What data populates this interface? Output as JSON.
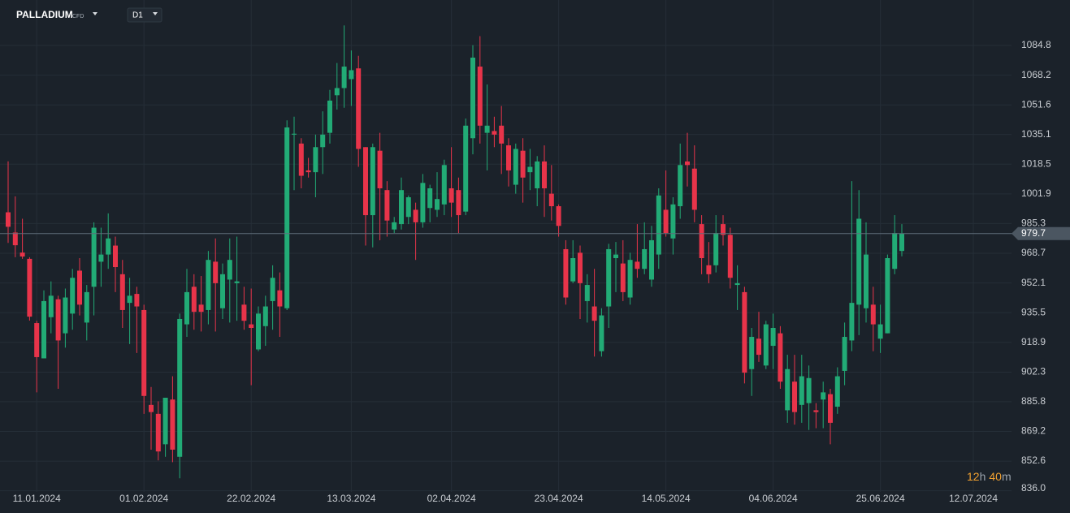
{
  "header": {
    "symbol": "PALLADIUM",
    "instrument_type": "CFD",
    "timeframe": "D1"
  },
  "chart_data": {
    "type": "candlestick",
    "x": [
      "05.01.2024",
      "08.01.2024",
      "09.01.2024",
      "10.01.2024",
      "11.01.2024",
      "12.01.2024",
      "15.01.2024",
      "16.01.2024",
      "17.01.2024",
      "18.01.2024",
      "19.01.2024",
      "22.01.2024",
      "23.01.2024",
      "24.01.2024",
      "25.01.2024",
      "26.01.2024",
      "29.01.2024",
      "30.01.2024",
      "31.01.2024",
      "01.02.2024",
      "02.02.2024",
      "05.02.2024",
      "06.02.2024",
      "07.02.2024",
      "08.02.2024",
      "09.02.2024",
      "12.02.2024",
      "13.02.2024",
      "14.02.2024",
      "15.02.2024",
      "16.02.2024",
      "19.02.2024",
      "20.02.2024",
      "21.02.2024",
      "22.02.2024",
      "23.02.2024",
      "26.02.2024",
      "27.02.2024",
      "28.02.2024",
      "29.02.2024",
      "01.03.2024",
      "04.03.2024",
      "05.03.2024",
      "06.03.2024",
      "07.03.2024",
      "08.03.2024",
      "11.03.2024",
      "12.03.2024",
      "13.03.2024",
      "14.03.2024",
      "15.03.2024",
      "18.03.2024",
      "19.03.2024",
      "20.03.2024",
      "21.03.2024",
      "22.03.2024",
      "25.03.2024",
      "26.03.2024",
      "27.03.2024",
      "28.03.2024",
      "29.03.2024",
      "01.04.2024",
      "02.04.2024",
      "03.04.2024",
      "04.04.2024",
      "05.04.2024",
      "08.04.2024",
      "09.04.2024",
      "10.04.2024",
      "11.04.2024",
      "12.04.2024",
      "15.04.2024",
      "16.04.2024",
      "17.04.2024",
      "18.04.2024",
      "19.04.2024",
      "22.04.2024",
      "23.04.2024",
      "24.04.2024",
      "25.04.2024",
      "26.04.2024",
      "29.04.2024",
      "30.04.2024",
      "01.05.2024",
      "02.05.2024",
      "03.05.2024",
      "06.05.2024",
      "07.05.2024",
      "08.05.2024",
      "09.05.2024",
      "10.05.2024",
      "13.05.2024",
      "14.05.2024",
      "15.05.2024",
      "16.05.2024",
      "17.05.2024",
      "20.05.2024",
      "21.05.2024",
      "22.05.2024",
      "23.05.2024",
      "24.05.2024",
      "27.05.2024",
      "28.05.2024",
      "29.05.2024",
      "30.05.2024",
      "31.05.2024",
      "03.06.2024",
      "04.06.2024",
      "05.06.2024",
      "06.06.2024",
      "07.06.2024",
      "10.06.2024",
      "11.06.2024",
      "12.06.2024",
      "13.06.2024",
      "14.06.2024",
      "17.06.2024",
      "18.06.2024",
      "19.06.2024",
      "20.06.2024",
      "21.06.2024",
      "24.06.2024",
      "25.06.2024",
      "26.06.2024",
      "27.06.2024",
      "28.06.2024"
    ],
    "open": [
      991.6,
      980.3,
      969.1,
      965.6,
      929.7,
      910,
      933,
      943,
      924,
      935,
      959,
      930,
      950,
      964,
      968,
      973,
      957,
      941,
      946,
      937,
      884,
      879,
      862,
      887,
      855,
      929,
      950,
      940,
      937,
      964,
      938,
      954,
      952,
      940,
      929,
      915,
      928,
      942,
      948,
      938,
      1035,
      1030,
      1015,
      1014,
      1028,
      1036,
      1057,
      1061,
      1066,
      1072,
      1028,
      990,
      1026,
      1004,
      982,
      985,
      989,
      993,
      986,
      994,
      993,
      996,
      1005,
      1004,
      992,
      1033,
      1073,
      1036,
      1037,
      1040,
      1029,
      1007,
      1026,
      1014,
      1005,
      1020,
      1002,
      995,
      971,
      953,
      969,
      942,
      939,
      914,
      939,
      966,
      963,
      944,
      964,
      960,
      954,
      968,
      993,
      977,
      995,
      1020,
      1016,
      985,
      962,
      962,
      985,
      979,
      951,
      947,
      904,
      921,
      906,
      917,
      924,
      881,
      897,
      884,
      885,
      881,
      887,
      890,
      883,
      903,
      920,
      940,
      938,
      940,
      921,
      924,
      960,
      970
    ],
    "high": [
      1020.1,
      1000.5,
      988,
      966.5,
      931,
      948,
      953,
      945,
      949,
      960,
      966,
      951,
      986,
      983,
      991,
      978,
      965,
      955,
      950,
      940,
      894,
      886,
      888,
      900,
      935,
      960,
      957,
      956,
      970,
      977,
      963,
      977,
      978,
      950,
      949,
      939,
      945,
      962,
      958,
      1043,
      1045,
      1033,
      1022,
      1035,
      1048,
      1060,
      1075,
      1096,
      1082,
      1079,
      1028,
      1030,
      1036,
      1009,
      989,
      1011,
      1001,
      997,
      1013,
      1007,
      1014,
      1021,
      1028,
      1011,
      1044,
      1085,
      1090,
      1063,
      1045,
      1051,
      1033,
      1030,
      1033,
      1027,
      1023,
      1029,
      1018,
      996,
      976,
      976,
      973,
      957,
      960,
      938,
      974,
      975,
      976,
      969,
      985,
      986,
      984,
      1005,
      1015,
      1000,
      1030,
      1036,
      1029,
      990,
      975,
      990,
      990,
      983,
      962,
      950,
      927,
      936,
      931,
      935,
      928,
      912,
      912,
      912,
      906,
      885,
      897,
      893,
      905,
      930,
      1009,
      1004,
      986,
      950,
      940,
      968,
      990,
      985
    ],
    "low": [
      974.5,
      966.5,
      965.6,
      931.1,
      891,
      910,
      924,
      893,
      916,
      926,
      934,
      920,
      934,
      950,
      960,
      947,
      927,
      918,
      913,
      879,
      859,
      853,
      855,
      852,
      843,
      922,
      926,
      925,
      929,
      925,
      932,
      930,
      931,
      926,
      895,
      914,
      917,
      926,
      922,
      937,
      1004,
      1005,
      1011,
      1000,
      1013,
      1030,
      1049,
      1050,
      1051,
      1017,
      973,
      972,
      976,
      978,
      980,
      982,
      985,
      965,
      983,
      986,
      989,
      990,
      989,
      980,
      990,
      1024,
      1030,
      1015,
      1028,
      1013,
      1006,
      1002,
      997,
      1004,
      995,
      989,
      987,
      978,
      940,
      952,
      932,
      930,
      911,
      911,
      927,
      947,
      942,
      940,
      955,
      957,
      950,
      960,
      978,
      968,
      988,
      1006,
      986,
      957,
      952,
      958,
      973,
      949,
      937,
      896,
      889,
      908,
      904,
      904,
      893,
      874,
      873,
      874,
      870,
      871,
      871,
      862,
      879,
      895,
      914,
      923,
      930,
      914,
      913,
      924,
      957,
      967
    ],
    "close": [
      983.5,
      973.2,
      966.9,
      933.3,
      910.7,
      942,
      945,
      920,
      944,
      955,
      940,
      947,
      983,
      968,
      977,
      961,
      937,
      945,
      939,
      889,
      880,
      858,
      888,
      859,
      932,
      947,
      936,
      936,
      965,
      952,
      957,
      965,
      953,
      931,
      927,
      935,
      939,
      955,
      939,
      1039,
      1035.5,
      1012,
      1014,
      1028,
      1035,
      1054,
      1061,
      1073,
      1071,
      1027,
      990,
      1028,
      1005,
      987,
      986,
      1004,
      1000,
      986,
      1008,
      1005,
      999,
      1018,
      997,
      990,
      1040,
      1078,
      1040,
      1040,
      1035,
      1030,
      1015,
      1027,
      1011,
      1017,
      1020,
      1005,
      995,
      984,
      944,
      966,
      952,
      951,
      931,
      934,
      971,
      968,
      947,
      965,
      960,
      971,
      976,
      1001,
      980,
      996,
      1018,
      1018,
      993,
      966,
      957,
      980,
      979,
      955,
      952,
      902,
      922,
      912,
      929,
      927,
      897,
      904,
      880,
      900,
      899,
      880,
      891,
      874,
      900,
      922,
      941,
      988,
      968,
      929,
      929,
      966,
      980,
      979.7
    ],
    "up_color": "#22ab76",
    "down_color": "#e8344a",
    "last_price": 979.7,
    "ylim": [
      835.4,
      1110.2
    ],
    "yticks": [
      {
        "value": 836,
        "label": "836.0"
      },
      852.6,
      869.2,
      885.8,
      902.3,
      918.9,
      935.5,
      952.1,
      968.7,
      985.3,
      1001.9,
      1018.5,
      1035.1,
      1051.6,
      1068.2,
      1084.8
    ],
    "xticks": [
      "11.01.2024",
      "01.02.2024",
      "22.02.2024",
      "13.03.2024",
      "02.04.2024",
      "23.04.2024",
      "14.05.2024",
      "04.06.2024",
      "25.06.2024",
      "12.07.2024"
    ],
    "grid": true
  },
  "countdown": {
    "hours": "12",
    "hours_unit": "h",
    "minutes": "40",
    "minutes_unit": "m"
  }
}
